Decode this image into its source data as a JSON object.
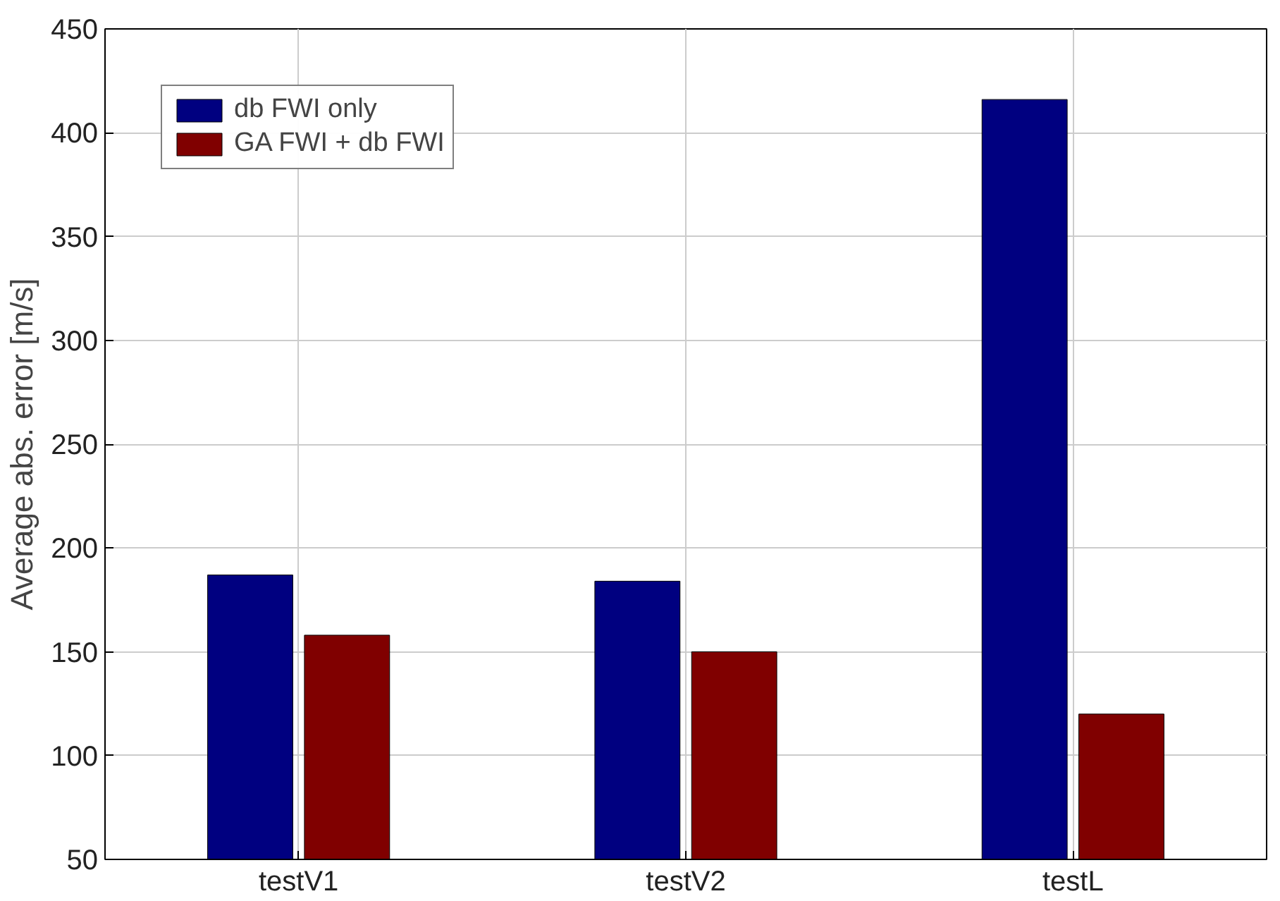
{
  "chart_data": {
    "type": "bar",
    "ylabel": "Average abs. error [m/s]",
    "categories": [
      "testV1",
      "testV2",
      "testL"
    ],
    "series": [
      {
        "name": "db FWI only",
        "color": "#000080",
        "values": [
          187,
          184,
          416
        ]
      },
      {
        "name": "GA FWI + db FWI",
        "color": "#800000",
        "values": [
          158,
          150,
          120
        ]
      }
    ],
    "ylim": [
      50,
      450
    ],
    "yticks": [
      50,
      100,
      150,
      200,
      250,
      300,
      350,
      400,
      450
    ],
    "grid": true,
    "legend": "top left"
  }
}
